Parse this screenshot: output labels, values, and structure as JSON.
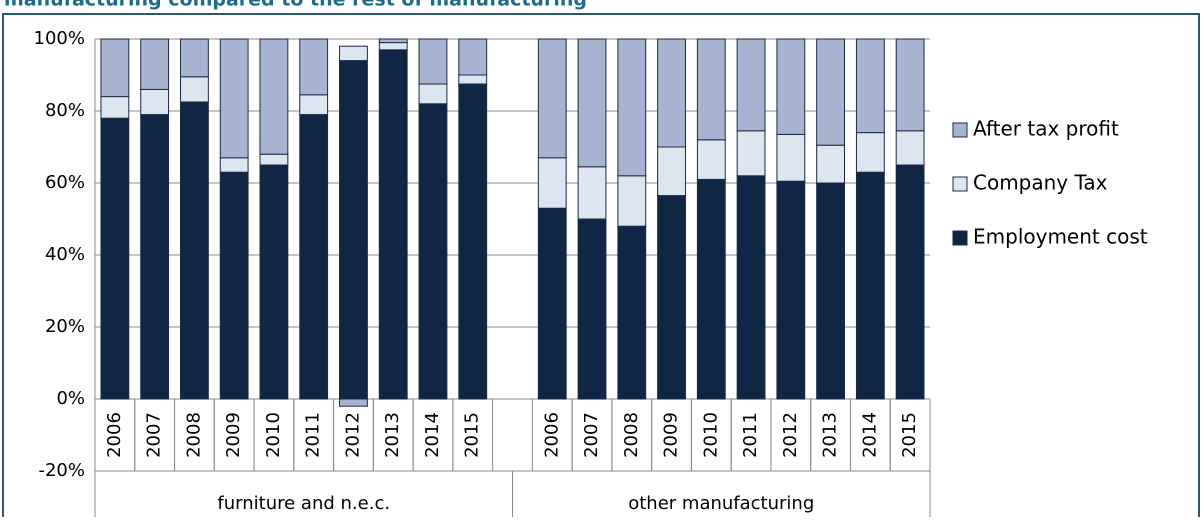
{
  "chart_data": {
    "type": "stacked_bar",
    "title": "manufacturing compared to the rest of manufacturing",
    "categories": [
      "2006",
      "2007",
      "2008",
      "2009",
      "2010",
      "2011",
      "2012",
      "2013",
      "2014",
      "2015",
      null,
      "2006",
      "2007",
      "2008",
      "2009",
      "2010",
      "2011",
      "2012",
      "2013",
      "2014",
      "2015"
    ],
    "groups": [
      "furniture and n.e.c.",
      "other manufacturing"
    ],
    "series": [
      {
        "name": "Employment cost",
        "color": "#0f2744",
        "values": [
          78,
          79,
          82.5,
          63,
          65,
          79,
          94,
          97,
          82,
          87.5,
          null,
          53,
          50,
          48,
          56.5,
          61,
          62,
          60.5,
          60,
          63,
          65
        ]
      },
      {
        "name": "Company Tax",
        "color": "#dde6f0",
        "values": [
          6,
          7,
          7,
          4,
          3,
          5.5,
          4,
          2,
          5.5,
          2.5,
          null,
          14,
          14.5,
          14,
          13.5,
          11,
          12.5,
          13,
          10.5,
          11,
          9.5
        ]
      },
      {
        "name": "After tax profit",
        "color": "#a6b4d2",
        "values": [
          16,
          14,
          10.5,
          33,
          32,
          15.5,
          -2,
          1,
          12.5,
          10,
          null,
          33,
          35.5,
          38,
          30,
          28,
          25.5,
          26.5,
          29.5,
          26,
          25.5
        ]
      }
    ],
    "ylim": [
      -20,
      100
    ],
    "yticks": [
      {
        "value": -20,
        "label": "-20%"
      },
      {
        "value": 0,
        "label": "0%"
      },
      {
        "value": 20,
        "label": "20%"
      },
      {
        "value": 40,
        "label": "40%"
      },
      {
        "value": 60,
        "label": "60%"
      },
      {
        "value": 80,
        "label": "80%"
      },
      {
        "value": 100,
        "label": "100%"
      }
    ],
    "grid": true,
    "legend": "right"
  }
}
